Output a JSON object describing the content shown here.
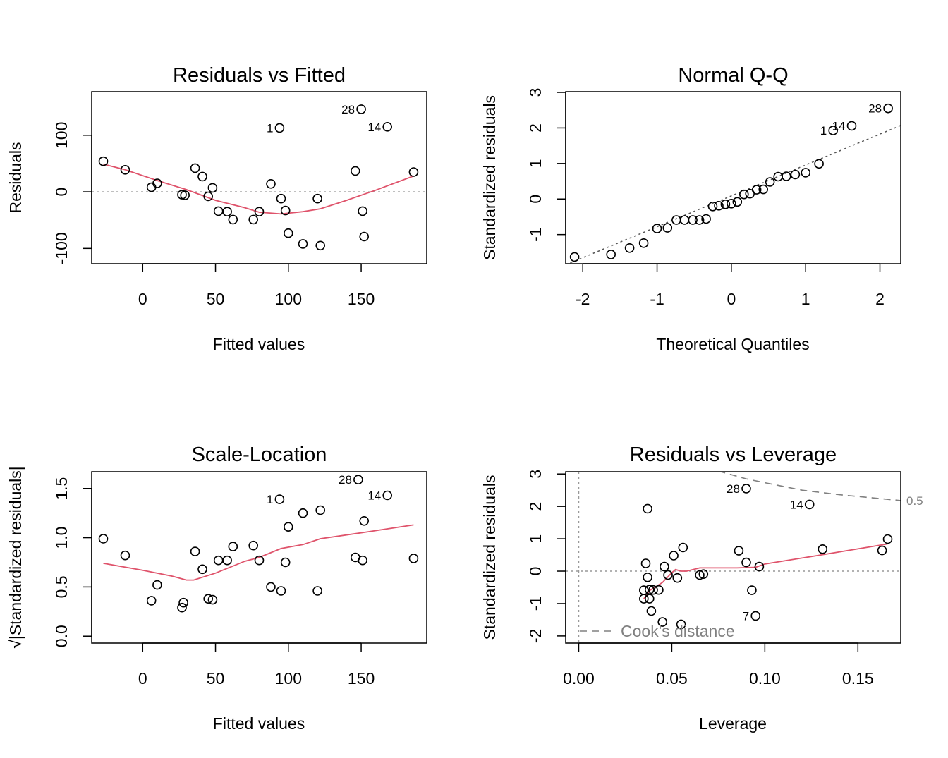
{
  "colors": {
    "axis": "#000000",
    "smooth": "#DF536B",
    "reference": "#999999",
    "cook": "#808080"
  },
  "chart_data": [
    {
      "type": "scatter",
      "title": "Residuals vs Fitted",
      "xlabel": "Fitted values",
      "ylabel": "Residuals",
      "xlim": [
        -35,
        195
      ],
      "ylim": [
        -127,
        177
      ],
      "xticks": [
        0,
        50,
        100,
        150
      ],
      "xtick_labels": [
        "0",
        "50",
        "100",
        "150"
      ],
      "yticks": [
        -100,
        0,
        100
      ],
      "ytick_labels": [
        "-100",
        "0",
        "100"
      ],
      "reference_line": {
        "axis": "y",
        "value": 0
      },
      "points": [
        [
          -27,
          54
        ],
        [
          -12,
          39
        ],
        [
          6,
          8
        ],
        [
          10,
          15
        ],
        [
          27,
          -5
        ],
        [
          29,
          -6
        ],
        [
          36,
          42
        ],
        [
          41,
          27
        ],
        [
          45,
          -8
        ],
        [
          48,
          7
        ],
        [
          52,
          -34
        ],
        [
          58,
          -35
        ],
        [
          62,
          -49
        ],
        [
          76,
          -49
        ],
        [
          80,
          -35
        ],
        [
          88,
          14
        ],
        [
          94,
          113
        ],
        [
          95,
          -12
        ],
        [
          98,
          -33
        ],
        [
          100,
          -73
        ],
        [
          110,
          -92
        ],
        [
          120,
          -12
        ],
        [
          122,
          -95
        ],
        [
          146,
          37
        ],
        [
          150,
          146
        ],
        [
          151,
          -34
        ],
        [
          152,
          -79
        ],
        [
          168,
          115
        ],
        [
          186,
          35
        ]
      ],
      "labels": [
        {
          "text": "28",
          "x": 150,
          "y": 146
        },
        {
          "text": "14",
          "x": 168,
          "y": 115
        },
        {
          "text": "1",
          "x": 94,
          "y": 113
        }
      ],
      "smooth": [
        [
          -27,
          49
        ],
        [
          -12,
          39
        ],
        [
          10,
          20
        ],
        [
          30,
          4
        ],
        [
          50,
          -15
        ],
        [
          70,
          -28
        ],
        [
          80,
          -36
        ],
        [
          95,
          -39
        ],
        [
          110,
          -35
        ],
        [
          122,
          -30
        ],
        [
          140,
          -15
        ],
        [
          160,
          3
        ],
        [
          186,
          28
        ]
      ]
    },
    {
      "type": "scatter",
      "title": "Normal Q-Q",
      "xlabel": "Theoretical Quantiles",
      "ylabel": "Standardized residuals",
      "xlim": [
        -2.23,
        2.28
      ],
      "ylim": [
        -1.82,
        3.02
      ],
      "xticks": [
        -2,
        -1,
        0,
        1,
        2
      ],
      "xtick_labels": [
        "-2",
        "-1",
        "0",
        "1",
        "2"
      ],
      "yticks": [
        -1,
        0,
        1,
        2,
        3
      ],
      "ytick_labels": [
        "-1",
        "0",
        "1",
        "2",
        "3"
      ],
      "qq_line": [
        [
          -2.23,
          -1.85
        ],
        [
          2.28,
          2.07
        ]
      ],
      "points": [
        [
          -2.11,
          -1.63
        ],
        [
          -1.62,
          -1.56
        ],
        [
          -1.37,
          -1.38
        ],
        [
          -1.18,
          -1.24
        ],
        [
          -1.0,
          -0.83
        ],
        [
          -0.86,
          -0.81
        ],
        [
          -0.74,
          -0.59
        ],
        [
          -0.63,
          -0.59
        ],
        [
          -0.52,
          -0.59
        ],
        [
          -0.43,
          -0.59
        ],
        [
          -0.34,
          -0.56
        ],
        [
          -0.25,
          -0.21
        ],
        [
          -0.17,
          -0.19
        ],
        [
          -0.08,
          -0.15
        ],
        [
          0.0,
          -0.13
        ],
        [
          0.08,
          -0.08
        ],
        [
          0.17,
          0.13
        ],
        [
          0.25,
          0.15
        ],
        [
          0.34,
          0.26
        ],
        [
          0.43,
          0.27
        ],
        [
          0.52,
          0.48
        ],
        [
          0.63,
          0.63
        ],
        [
          0.74,
          0.64
        ],
        [
          0.86,
          0.69
        ],
        [
          1.0,
          0.74
        ],
        [
          1.18,
          0.99
        ],
        [
          1.37,
          1.93
        ],
        [
          1.62,
          2.06
        ],
        [
          2.11,
          2.55
        ]
      ],
      "labels": [
        {
          "text": "28",
          "x": 2.11,
          "y": 2.55
        },
        {
          "text": "14",
          "x": 1.62,
          "y": 2.06
        },
        {
          "text": "1",
          "x": 1.37,
          "y": 1.93
        }
      ]
    },
    {
      "type": "scatter",
      "title": "Scale-Location",
      "xlabel": "Fitted values",
      "ylabel": "√|Standardized residuals|",
      "xlim": [
        -35,
        195
      ],
      "ylim": [
        -0.07,
        1.67
      ],
      "xticks": [
        0,
        50,
        100,
        150
      ],
      "xtick_labels": [
        "0",
        "50",
        "100",
        "150"
      ],
      "yticks": [
        0.0,
        0.5,
        1.0,
        1.5
      ],
      "ytick_labels": [
        "0.0",
        "0.5",
        "1.0",
        "1.5"
      ],
      "points": [
        [
          -27,
          0.99
        ],
        [
          -12,
          0.82
        ],
        [
          6,
          0.36
        ],
        [
          10,
          0.52
        ],
        [
          27,
          0.29
        ],
        [
          28,
          0.34
        ],
        [
          36,
          0.86
        ],
        [
          41,
          0.68
        ],
        [
          45,
          0.38
        ],
        [
          48,
          0.37
        ],
        [
          52,
          0.77
        ],
        [
          58,
          0.77
        ],
        [
          62,
          0.91
        ],
        [
          76,
          0.92
        ],
        [
          80,
          0.77
        ],
        [
          88,
          0.5
        ],
        [
          94,
          1.39
        ],
        [
          95,
          0.46
        ],
        [
          98,
          0.75
        ],
        [
          100,
          1.11
        ],
        [
          110,
          1.25
        ],
        [
          120,
          0.46
        ],
        [
          122,
          1.28
        ],
        [
          146,
          0.8
        ],
        [
          148,
          1.59
        ],
        [
          151,
          0.77
        ],
        [
          152,
          1.17
        ],
        [
          168,
          1.43
        ],
        [
          186,
          0.79
        ]
      ],
      "labels": [
        {
          "text": "28",
          "x": 148,
          "y": 1.59
        },
        {
          "text": "14",
          "x": 168,
          "y": 1.43
        },
        {
          "text": "1",
          "x": 94,
          "y": 1.39
        }
      ],
      "smooth": [
        [
          -27,
          0.74
        ],
        [
          0,
          0.67
        ],
        [
          20,
          0.61
        ],
        [
          30,
          0.57
        ],
        [
          35,
          0.57
        ],
        [
          50,
          0.64
        ],
        [
          70,
          0.76
        ],
        [
          80,
          0.8
        ],
        [
          95,
          0.89
        ],
        [
          110,
          0.93
        ],
        [
          122,
          0.99
        ],
        [
          150,
          1.05
        ],
        [
          186,
          1.13
        ]
      ]
    },
    {
      "type": "scatter",
      "title": "Residuals vs Leverage",
      "xlabel": "Leverage",
      "ylabel": "Standardized residuals",
      "xlim": [
        -0.007,
        0.173
      ],
      "ylim": [
        -2.22,
        3.07
      ],
      "xticks": [
        0.0,
        0.05,
        0.1,
        0.15
      ],
      "xtick_labels": [
        "0.00",
        "0.05",
        "0.10",
        "0.15"
      ],
      "yticks": [
        -2,
        -1,
        0,
        1,
        2,
        3
      ],
      "ytick_labels": [
        "-2",
        "-1",
        "0",
        "1",
        "2",
        "3"
      ],
      "reference_lines": [
        {
          "axis": "y",
          "value": 0
        },
        {
          "axis": "x",
          "value": 0
        }
      ],
      "points": [
        [
          0.035,
          -0.59
        ],
        [
          0.035,
          -0.85
        ],
        [
          0.036,
          0.24
        ],
        [
          0.037,
          -0.19
        ],
        [
          0.037,
          1.93
        ],
        [
          0.038,
          -0.85
        ],
        [
          0.038,
          -0.57
        ],
        [
          0.039,
          -1.23
        ],
        [
          0.04,
          -0.58
        ],
        [
          0.043,
          -0.58
        ],
        [
          0.045,
          -1.57
        ],
        [
          0.046,
          0.14
        ],
        [
          0.048,
          -0.12
        ],
        [
          0.051,
          0.48
        ],
        [
          0.053,
          -0.21
        ],
        [
          0.055,
          -1.64
        ],
        [
          0.056,
          0.73
        ],
        [
          0.065,
          -0.12
        ],
        [
          0.067,
          -0.09
        ],
        [
          0.086,
          0.63
        ],
        [
          0.09,
          0.27
        ],
        [
          0.09,
          2.55
        ],
        [
          0.093,
          -0.59
        ],
        [
          0.095,
          -1.38
        ],
        [
          0.097,
          0.14
        ],
        [
          0.124,
          2.06
        ],
        [
          0.131,
          0.68
        ],
        [
          0.163,
          0.64
        ],
        [
          0.166,
          0.99
        ]
      ],
      "labels": [
        {
          "text": "28",
          "x": 0.09,
          "y": 2.55
        },
        {
          "text": "14",
          "x": 0.124,
          "y": 2.06
        },
        {
          "text": "7",
          "x": 0.095,
          "y": -1.38
        }
      ],
      "smooth": [
        [
          0.035,
          -0.85
        ],
        [
          0.038,
          -0.6
        ],
        [
          0.045,
          -0.35
        ],
        [
          0.05,
          -0.05
        ],
        [
          0.052,
          0.05
        ],
        [
          0.055,
          0.0
        ],
        [
          0.058,
          0.0
        ],
        [
          0.065,
          0.1
        ],
        [
          0.085,
          0.1
        ],
        [
          0.095,
          0.12
        ],
        [
          0.1,
          0.22
        ],
        [
          0.13,
          0.5
        ],
        [
          0.166,
          0.84
        ]
      ],
      "cook_levels": [
        {
          "label": "0.5",
          "curve": [
            [
              0.075,
              3.09
            ],
            [
              0.09,
              2.85
            ],
            [
              0.1,
              2.73
            ],
            [
              0.12,
              2.5
            ],
            [
              0.14,
              2.36
            ],
            [
              0.173,
              2.18
            ]
          ]
        }
      ],
      "legend": {
        "position": "bottom-left",
        "label": "Cook's distance"
      }
    }
  ]
}
